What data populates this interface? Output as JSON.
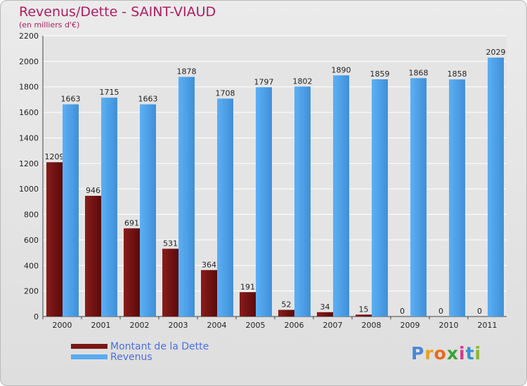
{
  "chart_data": {
    "type": "bar",
    "title": "Revenus/Dette - SAINT-VIAUD",
    "subtitle": "(en milliers d'€)",
    "categories": [
      "2000",
      "2001",
      "2002",
      "2003",
      "2004",
      "2005",
      "2006",
      "2007",
      "2008",
      "2009",
      "2010",
      "2011"
    ],
    "series": [
      {
        "name": "Montant de la Dette",
        "color": "#7a1616",
        "values": [
          1209,
          946,
          691,
          531,
          364,
          191,
          52,
          34,
          15,
          0,
          0,
          0
        ]
      },
      {
        "name": "Revenus",
        "color": "#5aaaf0",
        "values": [
          1663,
          1715,
          1663,
          1878,
          1708,
          1797,
          1802,
          1890,
          1859,
          1868,
          1858,
          2029
        ]
      }
    ],
    "ylim": [
      0,
      2200
    ],
    "yticks": [
      0,
      200,
      400,
      600,
      800,
      1000,
      1200,
      1400,
      1600,
      1800,
      2000,
      2200
    ],
    "grid": true,
    "legend": "bottom-left"
  },
  "brand": {
    "letters": [
      "P",
      "r",
      "o",
      "x",
      "i",
      "t",
      "i"
    ]
  }
}
